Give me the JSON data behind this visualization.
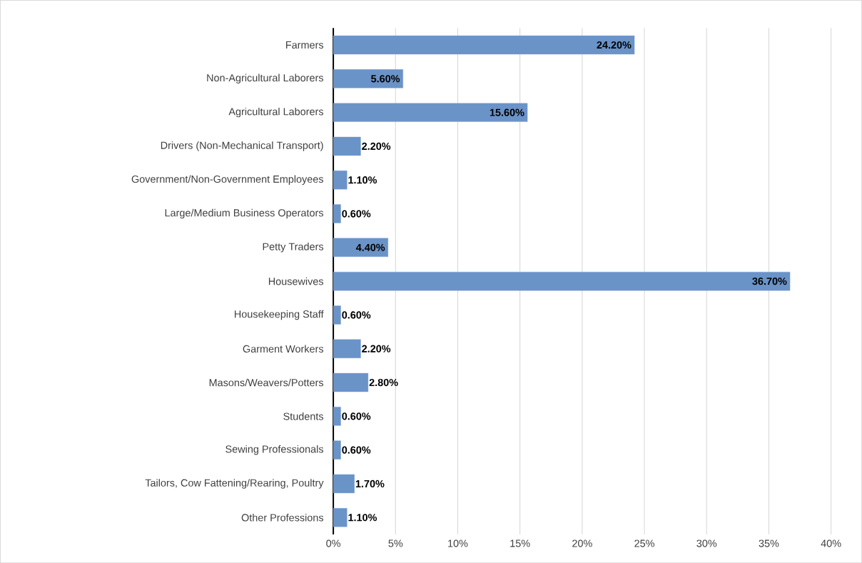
{
  "chart_data": {
    "type": "bar",
    "orientation": "horizontal",
    "categories": [
      "Farmers",
      "Non-Agricultural Laborers",
      "Agricultural Laborers",
      "Drivers (Non-Mechanical Transport)",
      "Government/Non-Government Employees",
      "Large/Medium Business Operators",
      "Petty Traders",
      "Housewives",
      "Housekeeping Staff",
      "Garment Workers",
      "Masons/Weavers/Potters",
      "Students",
      "Sewing Professionals",
      "Tailors, Cow Fattening/Rearing, Poultry",
      "Other Professions"
    ],
    "values": [
      24.2,
      5.6,
      15.6,
      2.2,
      1.1,
      0.6,
      4.4,
      36.7,
      0.6,
      2.2,
      2.8,
      0.6,
      0.6,
      1.7,
      1.1
    ],
    "value_labels": [
      "24.20%",
      "5.60%",
      "15.60%",
      "2.20%",
      "1.10%",
      "0.60%",
      "4.40%",
      "36.70%",
      "0.60%",
      "2.20%",
      "2.80%",
      "0.60%",
      "0.60%",
      "1.70%",
      "1.10%"
    ],
    "color": "#6a93c8",
    "xlim": [
      0,
      40
    ],
    "xticks": [
      {
        "value": 0,
        "label": "0%"
      },
      {
        "value": 5,
        "label": "5%"
      },
      {
        "value": 10,
        "label": "10%"
      },
      {
        "value": 15,
        "label": "15%"
      },
      {
        "value": 20,
        "label": "20%"
      },
      {
        "value": 25,
        "label": "25%"
      },
      {
        "value": 30,
        "label": "30%"
      },
      {
        "value": 35,
        "label": "35%"
      },
      {
        "value": 40,
        "label": "40%"
      }
    ],
    "grid": "x"
  }
}
